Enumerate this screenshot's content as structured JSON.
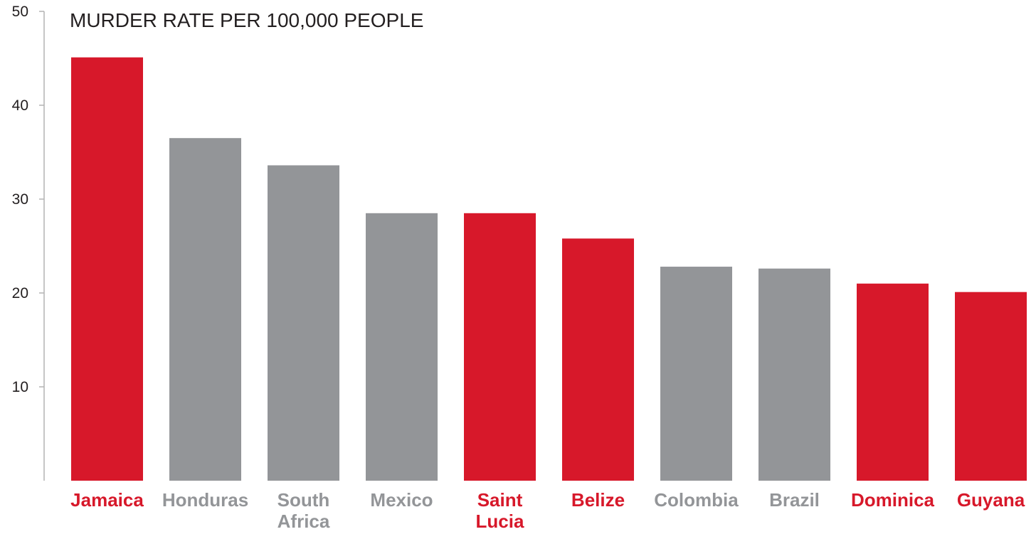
{
  "chart_data": {
    "type": "bar",
    "title": "MURDER RATE PER 100,000 PEOPLE",
    "xlabel": "",
    "ylabel": "",
    "ylim": [
      0,
      50
    ],
    "yticks": [
      10,
      20,
      30,
      40,
      50
    ],
    "grid": false,
    "categories": [
      {
        "label": [
          "Jamaica"
        ],
        "value": 45.1,
        "highlight": true
      },
      {
        "label": [
          "Honduras"
        ],
        "value": 36.5,
        "highlight": false
      },
      {
        "label": [
          "South",
          "Africa"
        ],
        "value": 33.6,
        "highlight": false
      },
      {
        "label": [
          "Mexico"
        ],
        "value": 28.5,
        "highlight": false
      },
      {
        "label": [
          "Saint",
          "Lucia"
        ],
        "value": 28.5,
        "highlight": true
      },
      {
        "label": [
          "Belize"
        ],
        "value": 25.8,
        "highlight": true
      },
      {
        "label": [
          "Colombia"
        ],
        "value": 22.8,
        "highlight": false
      },
      {
        "label": [
          "Brazil"
        ],
        "value": 22.6,
        "highlight": false
      },
      {
        "label": [
          "Dominica"
        ],
        "value": 21.0,
        "highlight": true
      },
      {
        "label": [
          "Guyana"
        ],
        "value": 20.1,
        "highlight": true
      }
    ],
    "colors": {
      "highlight": "#d7182a",
      "other": "#939598",
      "axis": "#b3b3b3",
      "text": "#231f20"
    }
  }
}
